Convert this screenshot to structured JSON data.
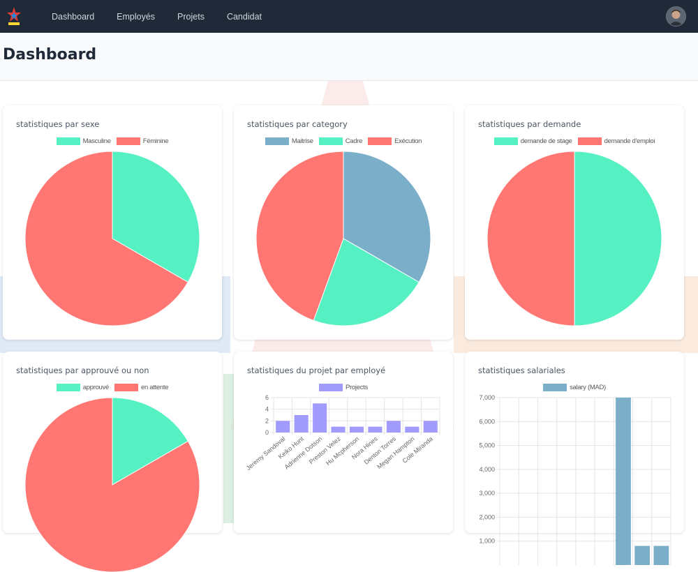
{
  "nav": {
    "items": [
      {
        "label": "Dashboard"
      },
      {
        "label": "Employés"
      },
      {
        "label": "Projets"
      },
      {
        "label": "Candidat"
      }
    ]
  },
  "page": {
    "title": "Dashboard"
  },
  "colors": {
    "mint": "#56f1c3",
    "red": "#ff7672",
    "steel": "#7aaec9",
    "purple": "#a29bfe",
    "navbar": "#1f2937"
  },
  "cards": [
    {
      "title": "statistiques par sexe",
      "legend": [
        {
          "label": "Masculine",
          "color": "#56f1c3"
        },
        {
          "label": "Féminine",
          "color": "#ff7672"
        }
      ],
      "chart_data": {
        "type": "pie",
        "labels": [
          "Masculine",
          "Féminine"
        ],
        "values": [
          1,
          2
        ],
        "colors": [
          "#56f1c3",
          "#ff7672"
        ]
      }
    },
    {
      "title": "statistiques par category",
      "legend": [
        {
          "label": "Maitrise",
          "color": "#7aaec9"
        },
        {
          "label": "Cadre",
          "color": "#56f1c3"
        },
        {
          "label": "Exécution",
          "color": "#ff7672"
        }
      ],
      "chart_data": {
        "type": "pie",
        "labels": [
          "Maitrise",
          "Cadre",
          "Exécution"
        ],
        "values": [
          3,
          2,
          4
        ],
        "colors": [
          "#7aaec9",
          "#56f1c3",
          "#ff7672"
        ]
      }
    },
    {
      "title": "statistiques par demande",
      "legend": [
        {
          "label": "demande de stage",
          "color": "#56f1c3"
        },
        {
          "label": "demande d'emploi",
          "color": "#ff7672"
        }
      ],
      "chart_data": {
        "type": "pie",
        "labels": [
          "demande de stage",
          "demande d'emploi"
        ],
        "values": [
          1,
          1
        ],
        "colors": [
          "#56f1c3",
          "#ff7672"
        ]
      }
    },
    {
      "title": "statistiques par approuvé ou non",
      "legend": [
        {
          "label": "approuvé",
          "color": "#56f1c3"
        },
        {
          "label": "en attente",
          "color": "#ff7672"
        }
      ],
      "chart_data": {
        "type": "pie",
        "labels": [
          "approuvé",
          "en attente"
        ],
        "values": [
          1,
          5
        ],
        "colors": [
          "#56f1c3",
          "#ff7672"
        ]
      }
    },
    {
      "title": "statistiques du projet par employé",
      "legend": [
        {
          "label": "Projects",
          "color": "#a29bfe"
        }
      ],
      "chart_data": {
        "type": "bar",
        "categories": [
          "Jeremy Sandoval",
          "Keiko Hunt",
          "Adrienne Dotson",
          "Preston Velez",
          "Hu Mcpherson",
          "Nora Hines",
          "Denton Torres",
          "Megan Hampton",
          "Cole Miranda"
        ],
        "series": [
          {
            "name": "Projects",
            "values": [
              2,
              3,
              5,
              1,
              1,
              1,
              2,
              1,
              2
            ]
          }
        ],
        "ylim": [
          0,
          6
        ],
        "yticks": [
          0,
          2,
          4,
          6
        ],
        "color": "#a29bfe"
      }
    },
    {
      "title": "statistiques salariales",
      "legend": [
        {
          "label": "salary (MAD)",
          "color": "#7aaec9"
        }
      ],
      "chart_data": {
        "type": "bar",
        "categories": [
          "",
          "",
          "",
          "",
          "",
          "",
          "",
          "",
          ""
        ],
        "series": [
          {
            "name": "salary (MAD)",
            "values": [
              0,
              0,
              0,
              0,
              0,
              0,
              7000,
              800,
              800
            ]
          }
        ],
        "ylim": [
          0,
          7000
        ],
        "yticks": [
          "1,000",
          "2,000",
          "3,000",
          "4,000",
          "5,000",
          "6,000",
          "7,000"
        ],
        "color": "#7aaec9"
      }
    }
  ]
}
